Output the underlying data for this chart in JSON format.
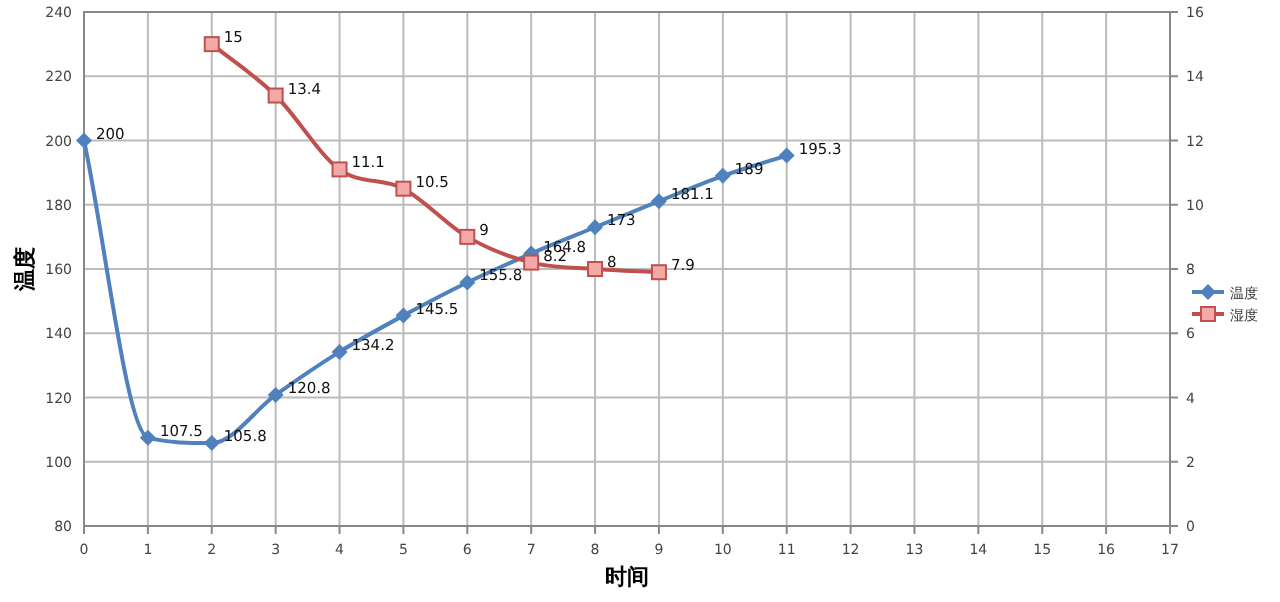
{
  "chart_data": {
    "type": "line",
    "xlabel": "时间",
    "ylabel": "温度",
    "xlim": [
      0,
      17
    ],
    "xticks": [
      0,
      1,
      2,
      3,
      4,
      5,
      6,
      7,
      8,
      9,
      10,
      11,
      12,
      13,
      14,
      15,
      16,
      17
    ],
    "ylim": [
      80,
      240
    ],
    "yticks": [
      80,
      100,
      120,
      140,
      160,
      180,
      200,
      220,
      240
    ],
    "y2lim": [
      0,
      16
    ],
    "y2ticks": [
      0,
      2,
      4,
      6,
      8,
      10,
      12,
      14,
      16
    ],
    "grid": true,
    "legend": "right",
    "data_labels": true,
    "series": [
      {
        "name": "温度",
        "color": "#4f81bd",
        "marker": "diamond",
        "x": [
          0,
          1,
          2,
          3,
          4,
          5,
          6,
          7,
          8,
          9,
          10,
          11
        ],
        "values": [
          200,
          107.5,
          105.8,
          120.8,
          134.2,
          145.5,
          155.8,
          164.8,
          173,
          181.1,
          189,
          195.3
        ]
      },
      {
        "name": "湿度",
        "color": "#c0504d",
        "marker": "square",
        "axis": "y2",
        "x": [
          2,
          3,
          4,
          5,
          6,
          7,
          8,
          9
        ],
        "values": [
          15,
          13.4,
          11.1,
          10.5,
          9,
          8.2,
          8,
          7.9
        ]
      }
    ]
  }
}
